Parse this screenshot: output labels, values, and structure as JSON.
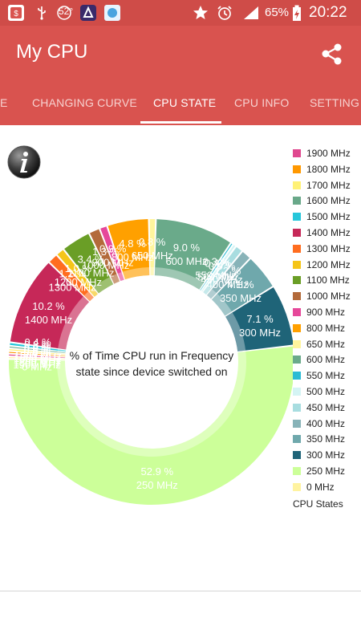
{
  "status_bar": {
    "battery": "65%",
    "time": "20:22",
    "overlay_text": "52°"
  },
  "app_bar": {
    "title": "My CPU",
    "share_icon": "share-icon"
  },
  "tabs": [
    {
      "label": "E"
    },
    {
      "label": "CHANGING CURVE"
    },
    {
      "label": "CPU STATE",
      "active": true
    },
    {
      "label": "CPU INFO"
    },
    {
      "label": "SETTING"
    }
  ],
  "center_text": [
    "% of Time CPU run in Frequency",
    "state since device switched on"
  ],
  "legend": {
    "title": "CPU States",
    "items": [
      {
        "label": "1900 MHz",
        "color": "#e0488f"
      },
      {
        "label": "1800 MHz",
        "color": "#ff9800"
      },
      {
        "label": "1700 MHz",
        "color": "#fff176"
      },
      {
        "label": "1600 MHz",
        "color": "#69a889"
      },
      {
        "label": "1500 MHz",
        "color": "#26c6da"
      },
      {
        "label": "1400 MHz",
        "color": "#c62858"
      },
      {
        "label": "1300 MHz",
        "color": "#ff6d1f"
      },
      {
        "label": "1200 MHz",
        "color": "#f5c518"
      },
      {
        "label": "1100 MHz",
        "color": "#6a9e26"
      },
      {
        "label": "1000 MHz",
        "color": "#b36a3a"
      },
      {
        "label": "900 MHz",
        "color": "#e6489a"
      },
      {
        "label": "800 MHz",
        "color": "#ffa000"
      },
      {
        "label": "650 MHz",
        "color": "#fff59d"
      },
      {
        "label": "600 MHz",
        "color": "#6aaa8a"
      },
      {
        "label": "550 MHz",
        "color": "#2bbcd4"
      },
      {
        "label": "500 MHz",
        "color": "#d4f4f4"
      },
      {
        "label": "450 MHz",
        "color": "#a8dde0"
      },
      {
        "label": "400 MHz",
        "color": "#88b3b8"
      },
      {
        "label": "350 MHz",
        "color": "#6fa8ac"
      },
      {
        "label": "300 MHz",
        "color": "#1f6478"
      },
      {
        "label": "250 MHz",
        "color": "#ccff99"
      },
      {
        "label": "0 MHz",
        "color": "#fff3a0"
      }
    ]
  },
  "chart_data": {
    "type": "pie",
    "title": "% of Time CPU run in Frequency state since device switched on",
    "slices": [
      {
        "label": "600 MHz",
        "value": 9.0,
        "color": "#6aaa8a"
      },
      {
        "label": "550 MHz",
        "value": 0.3,
        "color": "#2bbcd4"
      },
      {
        "label": "500 MHz",
        "value": 0.4,
        "color": "#d4f4f4"
      },
      {
        "label": "450 MHz",
        "value": 0.9,
        "color": "#a8dde0"
      },
      {
        "label": "400 MHz",
        "value": 1.2,
        "color": "#88b3b8"
      },
      {
        "label": "350 MHz",
        "value": 4.1,
        "color": "#6fa8ac"
      },
      {
        "label": "300 MHz",
        "value": 7.1,
        "color": "#1f6478"
      },
      {
        "label": "250 MHz",
        "value": 52.9,
        "color": "#ccff99"
      },
      {
        "label": "0 MHz",
        "value": 0.0,
        "color": "#fff3a0"
      },
      {
        "label": "1900 MHz",
        "value": 0.3,
        "color": "#e0488f"
      },
      {
        "label": "1800 MHz",
        "value": 0.0,
        "color": "#ff9800"
      },
      {
        "label": "1700 MHz",
        "value": 0.0,
        "color": "#fff176"
      },
      {
        "label": "1600 MHz",
        "value": 0.3,
        "color": "#69a889"
      },
      {
        "label": "1500 MHz",
        "value": 0.4,
        "color": "#26c6da"
      },
      {
        "label": "1400 MHz",
        "value": 10.2,
        "color": "#c62858"
      },
      {
        "label": "1300 MHz",
        "value": 1.2,
        "color": "#ff6d1f"
      },
      {
        "label": "1200 MHz",
        "value": 1.0,
        "color": "#f5c518"
      },
      {
        "label": "1100 MHz",
        "value": 3.4,
        "color": "#6a9e26"
      },
      {
        "label": "1000 MHz",
        "value": 1.3,
        "color": "#b36a3a"
      },
      {
        "label": "900 MHz",
        "value": 0.9,
        "color": "#e6489a"
      },
      {
        "label": "800 MHz",
        "value": 4.8,
        "color": "#ffa000"
      },
      {
        "label": "650 MHz",
        "value": 0.8,
        "color": "#fff59d"
      }
    ]
  }
}
